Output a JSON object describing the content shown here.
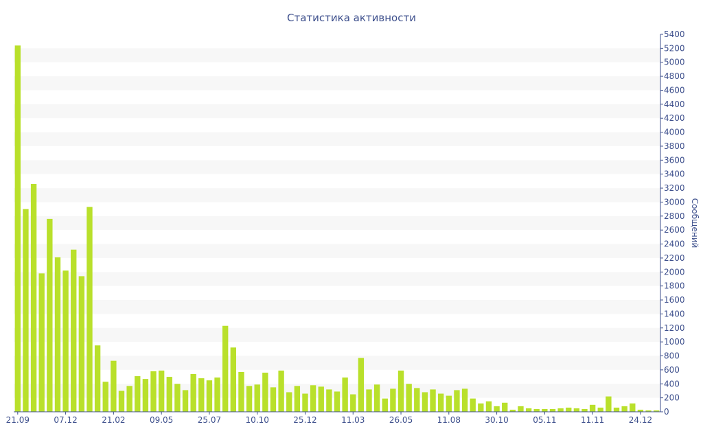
{
  "chart_data": {
    "type": "bar",
    "title": "Статистика активности",
    "ylabel": "Сообщений",
    "xlabel": "",
    "ylim": [
      0,
      5400
    ],
    "y_ticks": [
      0,
      200,
      400,
      600,
      800,
      1000,
      1200,
      1400,
      1600,
      1800,
      2000,
      2200,
      2400,
      2600,
      2800,
      3000,
      3200,
      3400,
      3600,
      3800,
      4000,
      4200,
      4400,
      4600,
      4800,
      5000,
      5200,
      5400
    ],
    "y_axis_side": "right",
    "x_tick_labels": [
      {
        "label": "21.09",
        "index": 0
      },
      {
        "label": "07.12",
        "index": 6
      },
      {
        "label": "21.02",
        "index": 12
      },
      {
        "label": "09.05",
        "index": 18
      },
      {
        "label": "25.07",
        "index": 24
      },
      {
        "label": "10.10",
        "index": 30
      },
      {
        "label": "25.12",
        "index": 36
      },
      {
        "label": "11.03",
        "index": 42
      },
      {
        "label": "26.05",
        "index": 48
      },
      {
        "label": "11.08",
        "index": 54
      },
      {
        "label": "30.10",
        "index": 60
      },
      {
        "label": "05.11",
        "index": 66
      },
      {
        "label": "11.11",
        "index": 72
      },
      {
        "label": "24.12",
        "index": 78
      }
    ],
    "values": [
      5240,
      2900,
      3260,
      1980,
      2760,
      2210,
      2020,
      2320,
      1940,
      2930,
      950,
      430,
      730,
      300,
      370,
      510,
      470,
      580,
      590,
      500,
      400,
      310,
      540,
      480,
      450,
      490,
      1230,
      920,
      570,
      370,
      390,
      560,
      350,
      590,
      280,
      370,
      260,
      380,
      360,
      320,
      290,
      490,
      250,
      770,
      320,
      390,
      190,
      330,
      590,
      400,
      340,
      280,
      320,
      260,
      230,
      310,
      330,
      190,
      120,
      150,
      80,
      130,
      30,
      80,
      50,
      40,
      40,
      40,
      50,
      60,
      50,
      40,
      100,
      60,
      220,
      60,
      80,
      120,
      30,
      20,
      20
    ],
    "bar_color": "#b9e02b",
    "stripe_color": "#f7f7f7",
    "axis_color": "#3d4f8c",
    "grid": "alternating horizontal bands"
  }
}
